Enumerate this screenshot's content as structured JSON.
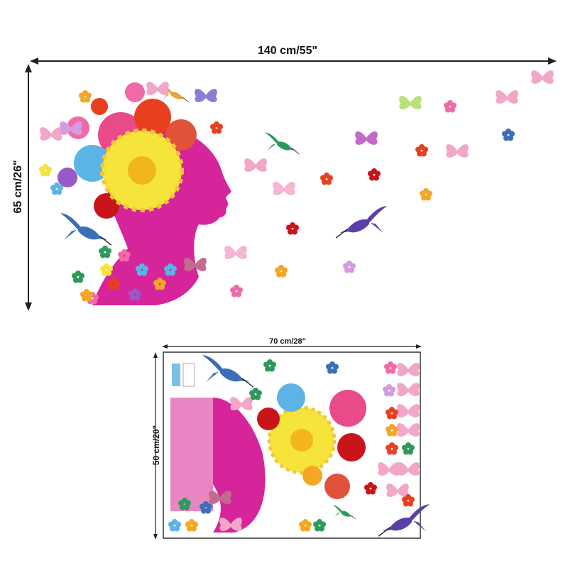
{
  "dimensions": {
    "width_label": "140 cm/55\"",
    "height_label": "65 cm/26\"",
    "sheet_width_label": "70 cm/28\"",
    "sheet_height_label": "50 cm/20\""
  },
  "colors": {
    "silhouette": "#d6249b",
    "sunflower": "#f6e43a",
    "sunflower_center": "#f2b51a",
    "hummingbird": "#3a6fb7",
    "hummingbird_green": "#2d9a5b",
    "butterfly": "#f2a6c8",
    "frame": "#333333"
  }
}
